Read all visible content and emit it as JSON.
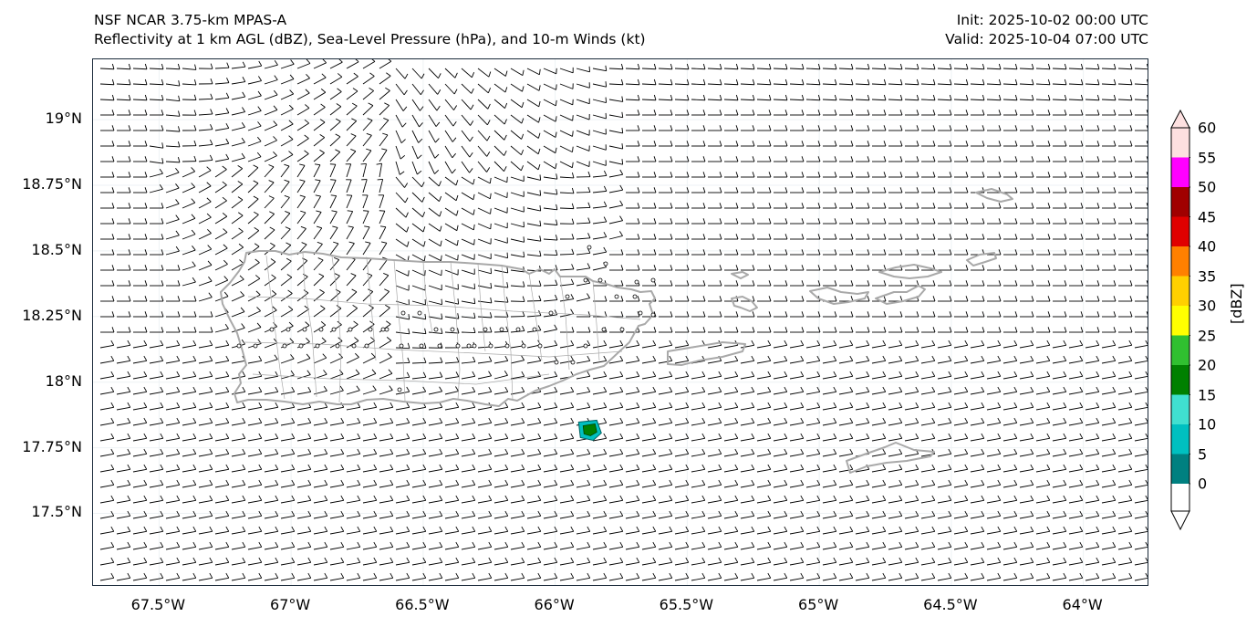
{
  "title": {
    "left_line1": "NSF NCAR 3.75-km MPAS-A",
    "left_line2": "Reflectivity at 1 km AGL (dBZ), Sea-Level Pressure (hPa), and 10-m Winds (kt)",
    "right_line1": "Init: 2025-10-02 00:00 UTC",
    "right_line2": "Valid: 2025-10-04 07:00 UTC"
  },
  "map": {
    "lon_range": [
      -67.75,
      -63.75
    ],
    "lat_range": [
      17.22,
      19.23
    ],
    "y_ticks": [
      {
        "lat": 19.0,
        "label": "19°N"
      },
      {
        "lat": 18.75,
        "label": "18.75°N"
      },
      {
        "lat": 18.5,
        "label": "18.5°N"
      },
      {
        "lat": 18.25,
        "label": "18.25°N"
      },
      {
        "lat": 18.0,
        "label": "18°N"
      },
      {
        "lat": 17.75,
        "label": "17.75°N"
      },
      {
        "lat": 17.5,
        "label": "17.5°N"
      }
    ],
    "x_ticks": [
      {
        "lon": -67.5,
        "label": "67.5°W"
      },
      {
        "lon": -67.0,
        "label": "67°W"
      },
      {
        "lon": -66.5,
        "label": "66.5°W"
      },
      {
        "lon": -66.0,
        "label": "66°W"
      },
      {
        "lon": -65.5,
        "label": "65.5°W"
      },
      {
        "lon": -65.0,
        "label": "65°W"
      },
      {
        "lon": -64.5,
        "label": "64.5°W"
      },
      {
        "lon": -64.0,
        "label": "64°W"
      }
    ],
    "coast_color": "#a9a9a9",
    "barb_color": "#000000"
  },
  "colorbar": {
    "units": "[dBZ]",
    "levels": [
      "0",
      "5",
      "10",
      "15",
      "20",
      "25",
      "30",
      "35",
      "40",
      "45",
      "50",
      "55",
      "60"
    ],
    "colors": [
      "#ffffff",
      "#008080",
      "#00c0c0",
      "#40e0d0",
      "#008000",
      "#30c030",
      "#ffff00",
      "#ffd000",
      "#ff8000",
      "#e00000",
      "#a00000",
      "#ff00ff",
      "#fde0e0"
    ]
  },
  "chart_data": {
    "type": "map",
    "title": "Reflectivity at 1 km AGL (dBZ), Sea-Level Pressure (hPa), and 10-m Winds (kt)",
    "region": "Puerto Rico and Virgin Islands",
    "reflectivity_cells": [
      {
        "lon": -65.87,
        "lat": 17.82,
        "max_dbz": 20
      }
    ],
    "prevailing_wind": "easterly",
    "colorbar_range": [
      0,
      60
    ]
  }
}
